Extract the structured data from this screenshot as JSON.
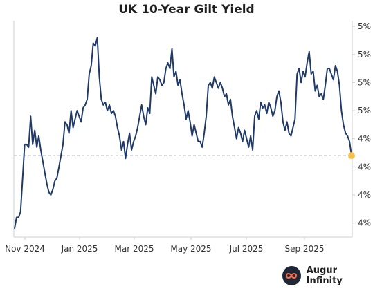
{
  "chart_data": {
    "type": "line",
    "title": "UK 10-Year Gilt Yield",
    "xlabel": "",
    "ylabel": "",
    "x_tick_labels": [
      "Nov 2024",
      "Jan 2025",
      "Mar 2025",
      "May 2025",
      "Jul 2025",
      "Sep 2025"
    ],
    "y_tick_labels": [
      "5%",
      "5%",
      "5%",
      "5%",
      "4%",
      "4%",
      "4%",
      "4%"
    ],
    "y_tick_values": [
      4.9,
      4.8,
      4.7,
      4.6,
      4.5,
      4.4,
      4.3,
      4.2
    ],
    "ylim": [
      4.15,
      4.92
    ],
    "grid": false,
    "legend": "none",
    "reference_line": 4.44,
    "line_color": "#1f3a68",
    "reference_color": "#9aa6b8",
    "marker_color": "#f2c14e",
    "series": [
      {
        "values": [
          4.18,
          4.22,
          4.22,
          4.24,
          4.36,
          4.48,
          4.48,
          4.47,
          4.58,
          4.48,
          4.53,
          4.47,
          4.51,
          4.46,
          4.42,
          4.38,
          4.34,
          4.31,
          4.3,
          4.32,
          4.35,
          4.36,
          4.4,
          4.44,
          4.48,
          4.56,
          4.55,
          4.52,
          4.6,
          4.54,
          4.57,
          4.6,
          4.58,
          4.56,
          4.61,
          4.62,
          4.64,
          4.73,
          4.76,
          4.84,
          4.83,
          4.86,
          4.72,
          4.64,
          4.62,
          4.63,
          4.6,
          4.62,
          4.59,
          4.6,
          4.58,
          4.54,
          4.51,
          4.46,
          4.49,
          4.43,
          4.48,
          4.52,
          4.46,
          4.49,
          4.51,
          4.54,
          4.58,
          4.62,
          4.58,
          4.55,
          4.61,
          4.59,
          4.72,
          4.69,
          4.66,
          4.72,
          4.71,
          4.69,
          4.7,
          4.75,
          4.77,
          4.75,
          4.82,
          4.72,
          4.74,
          4.69,
          4.71,
          4.66,
          4.62,
          4.57,
          4.6,
          4.56,
          4.51,
          4.55,
          4.52,
          4.49,
          4.49,
          4.47,
          4.52,
          4.58,
          4.69,
          4.7,
          4.68,
          4.72,
          4.7,
          4.68,
          4.7,
          4.68,
          4.65,
          4.66,
          4.62,
          4.64,
          4.58,
          4.54,
          4.5,
          4.54,
          4.52,
          4.49,
          4.53,
          4.5,
          4.47,
          4.51,
          4.46,
          4.58,
          4.6,
          4.57,
          4.63,
          4.61,
          4.62,
          4.59,
          4.63,
          4.61,
          4.58,
          4.6,
          4.65,
          4.67,
          4.63,
          4.56,
          4.53,
          4.56,
          4.52,
          4.51,
          4.54,
          4.57,
          4.73,
          4.75,
          4.7,
          4.74,
          4.72,
          4.77,
          4.81,
          4.73,
          4.74,
          4.67,
          4.69,
          4.65,
          4.66,
          4.64,
          4.69,
          4.75,
          4.75,
          4.73,
          4.71,
          4.76,
          4.74,
          4.69,
          4.6,
          4.55,
          4.52,
          4.51,
          4.49,
          4.44
        ]
      }
    ],
    "last_value": 4.44
  },
  "brand": {
    "name": "Augur Infinity",
    "logo_icon": "infinity-icon"
  }
}
